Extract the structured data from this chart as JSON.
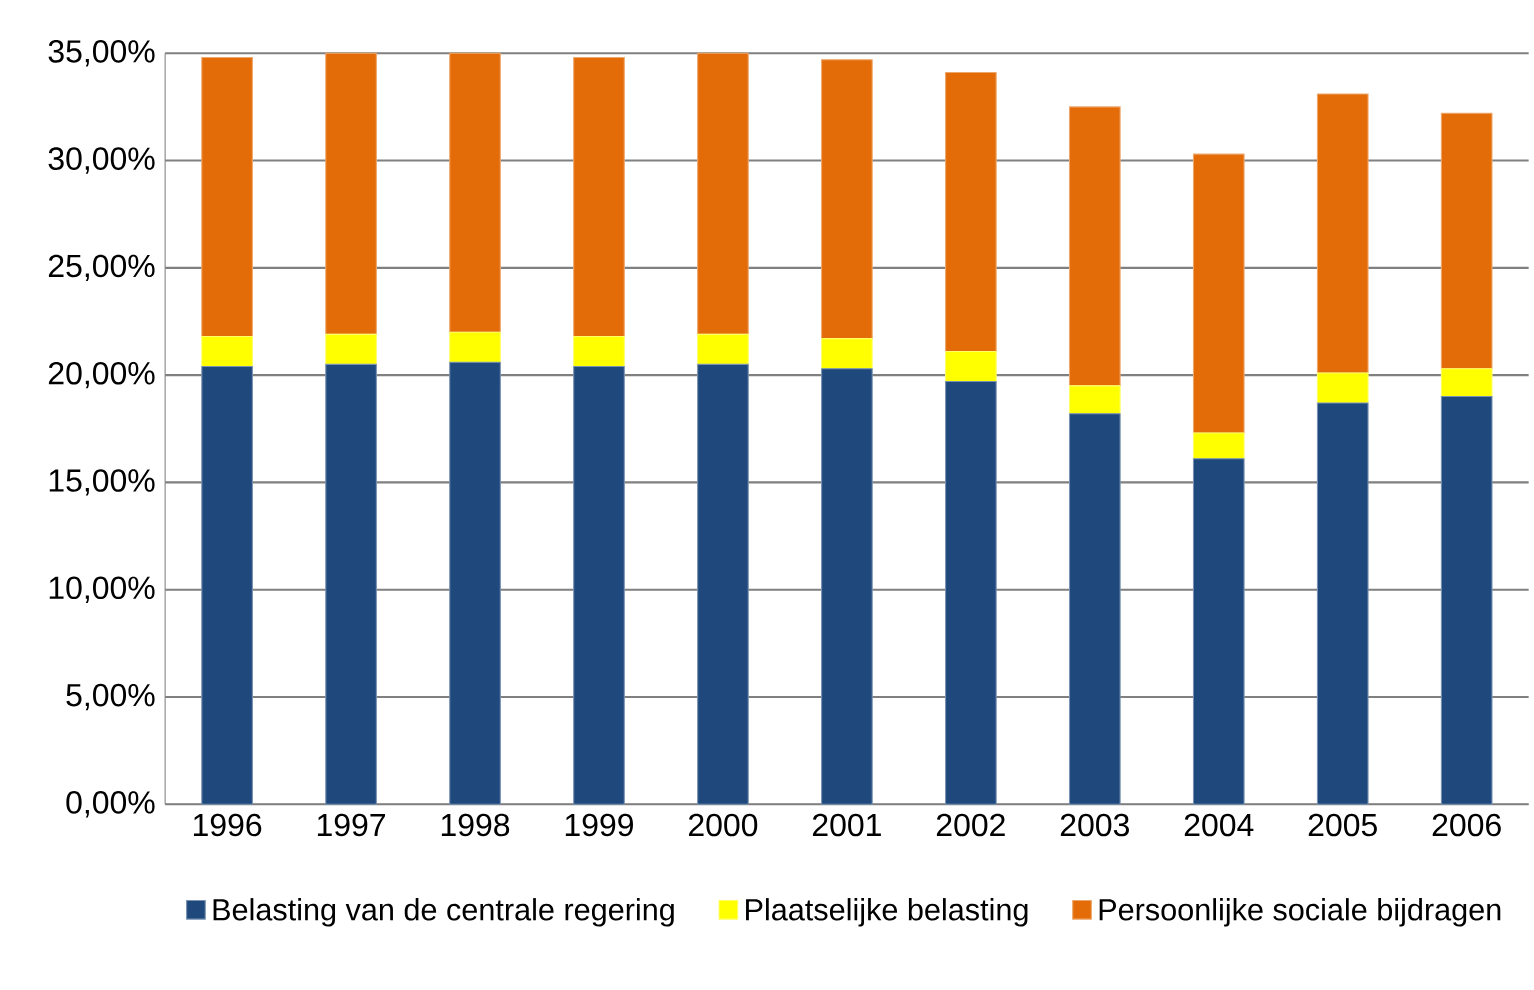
{
  "chart_data": {
    "type": "bar",
    "stacked": true,
    "grid": "y",
    "legend": "bottom",
    "categories": [
      "1996",
      "1997",
      "1998",
      "1999",
      "2000",
      "2001",
      "2002",
      "2003",
      "2004",
      "2005",
      "2006"
    ],
    "series": [
      {
        "name": "Belasting van de centrale regering",
        "color": "#1f497d",
        "values": [
          20.4,
          20.5,
          20.6,
          20.4,
          20.5,
          20.3,
          19.7,
          18.2,
          16.1,
          18.7,
          19.0
        ]
      },
      {
        "name": "Plaatselijke belasting",
        "color": "#ffff00",
        "values": [
          1.4,
          1.4,
          1.4,
          1.4,
          1.4,
          1.4,
          1.4,
          1.3,
          1.2,
          1.4,
          1.3
        ]
      },
      {
        "name": "Persoonlijke sociale bijdragen",
        "color": "#e36c09",
        "values": [
          13.0,
          13.1,
          13.0,
          13.0,
          13.1,
          13.0,
          13.0,
          13.0,
          13.0,
          13.0,
          11.9
        ]
      }
    ],
    "ylim": [
      0,
      35
    ],
    "yticks": [
      {
        "value": 0,
        "label": "0,00%"
      },
      {
        "value": 5,
        "label": "5,00%"
      },
      {
        "value": 10,
        "label": "10,00%"
      },
      {
        "value": 15,
        "label": "15,00%"
      },
      {
        "value": 20,
        "label": "20,00%"
      },
      {
        "value": 25,
        "label": "25,00%"
      },
      {
        "value": 30,
        "label": "30,00%"
      },
      {
        "value": 35,
        "label": "35,00%"
      }
    ]
  }
}
